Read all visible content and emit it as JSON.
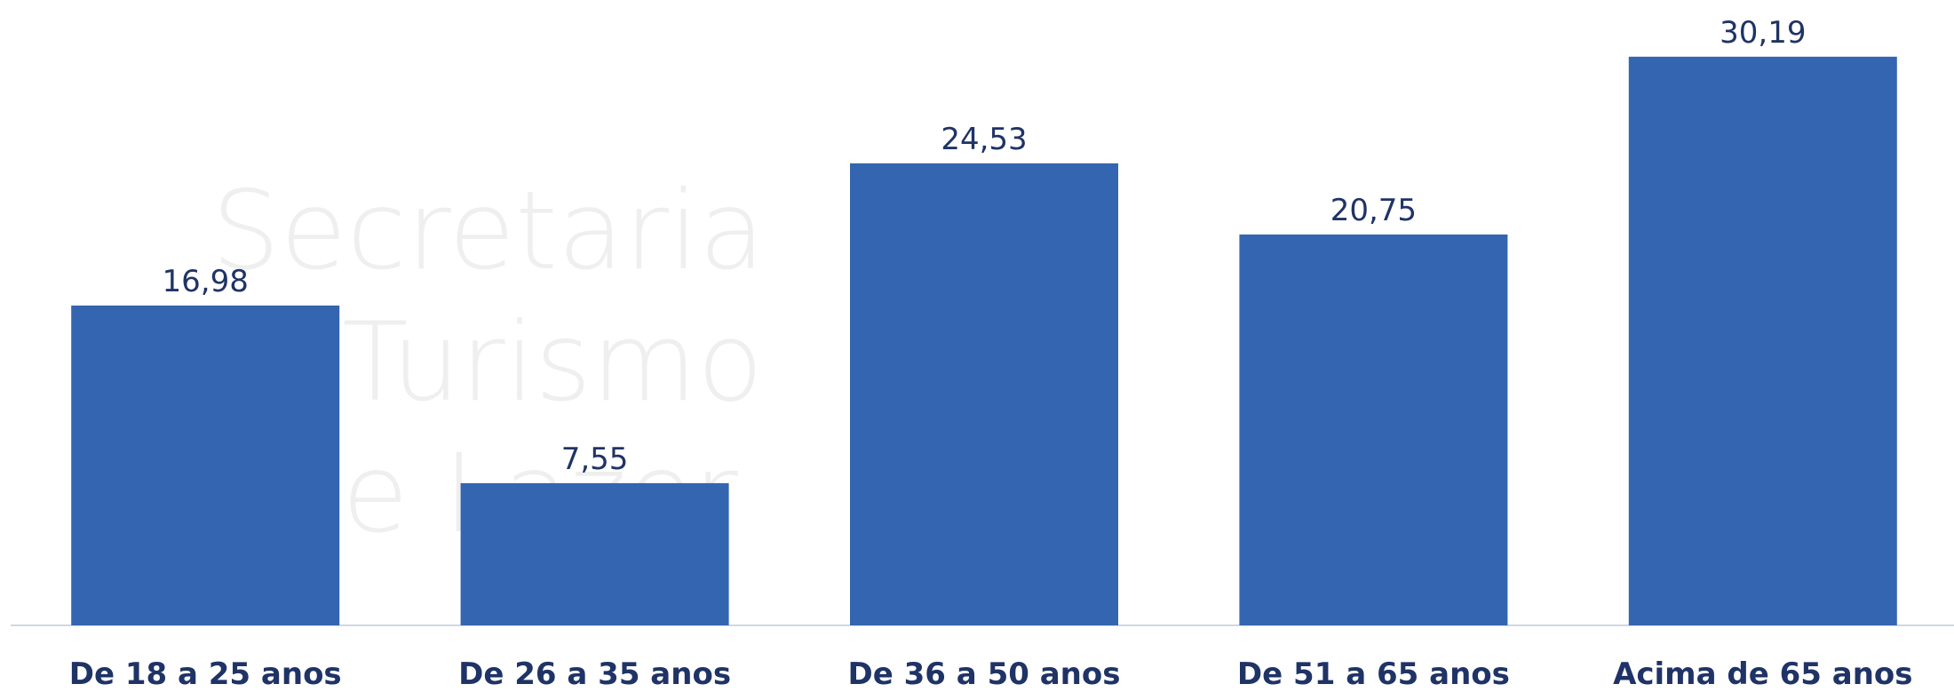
{
  "chart_data": {
    "type": "bar",
    "categories": [
      "De 18 a 25 anos",
      "De 26 a 35 anos",
      "De 36 a 50 anos",
      "De 51 a 65 anos",
      "Acima de 65 anos"
    ],
    "values": [
      16.98,
      7.55,
      24.53,
      20.75,
      30.19
    ],
    "value_labels": [
      "16,98",
      "7,55",
      "24,53",
      "20,75",
      "30,19"
    ],
    "color": "#3465b0",
    "ylim": [
      0,
      33.2
    ],
    "grid": false
  },
  "watermark": [
    "Secretaria",
    "Turismo",
    "e Lazer"
  ]
}
